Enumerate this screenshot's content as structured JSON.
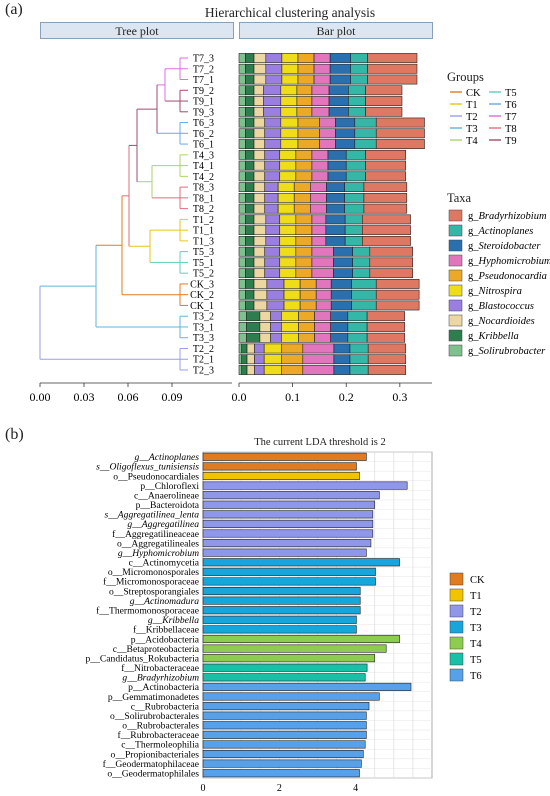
{
  "panel_a": {
    "label": "(a)",
    "title": "Hierarchical clustering analysis",
    "tree_header": "Tree plot",
    "bar_header": "Bar plot",
    "groups_title": "Groups",
    "taxa_title": "Taxa"
  },
  "panel_b": {
    "label": "(b)",
    "title": "The current LDA threshold is 2"
  },
  "colors": {
    "groups": {
      "CK": "#e07b1f",
      "T1": "#e6c619",
      "T2": "#9b9de6",
      "T3": "#63b3dc",
      "T4": "#a9d36b",
      "T5": "#5fcdbf",
      "T6": "#69a8ea",
      "T7": "#dc6fdc",
      "T8": "#e06c7c",
      "T9": "#a04c6e"
    },
    "lda_groups": {
      "CK": "#e07b1f",
      "T1": "#f2c400",
      "T2": "#8f97e8",
      "T3": "#16a6dc",
      "T4": "#8ccd4f",
      "T5": "#17c0a6",
      "T6": "#57a0ea"
    }
  },
  "chart_data": [
    {
      "type": "bar",
      "subtype": "stacked-horizontal",
      "title": "Hierarchical clustering analysis",
      "x_ticks": [
        "0.0",
        "0.1",
        "0.2",
        "0.3"
      ],
      "xlim": [
        0,
        0.36
      ],
      "tree_x_ticks": [
        "0.00",
        "0.03",
        "0.06",
        "0.09"
      ],
      "tree_xlim": [
        0,
        0.12
      ],
      "categories": [
        "T7_3",
        "T7_2",
        "T7_1",
        "T9_2",
        "T9_1",
        "T9_3",
        "T6_3",
        "T6_2",
        "T6_1",
        "T4_3",
        "T4_1",
        "T4_2",
        "T8_3",
        "T8_1",
        "T8_2",
        "T1_2",
        "T1_1",
        "T1_3",
        "T5_3",
        "T5_1",
        "T5_2",
        "CK_3",
        "CK_2",
        "CK_1",
        "T3_2",
        "T3_1",
        "T3_3",
        "T2_2",
        "T2_1",
        "T2_3"
      ],
      "groups": [
        "CK",
        "T1",
        "T2",
        "T3",
        "T4",
        "T5",
        "T6",
        "T7",
        "T8",
        "T9"
      ],
      "legend_groups_order": [
        "CK",
        "T1",
        "T2",
        "T3",
        "T4",
        "T5",
        "T6",
        "T7",
        "T8",
        "T9"
      ],
      "taxa": [
        "g_Solirubrobacter",
        "g_Kribbella",
        "g_Nocardioides",
        "g_Blastococcus",
        "g_Nitrospira",
        "g_Pseudonocardia",
        "g_Hyphomicrobium",
        "g_Steroidobacter",
        "g_Actinoplanes",
        "g_Bradyrhizobium"
      ],
      "taxa_legend_order": [
        "g_Bradyrhizobium",
        "g_Actinoplanes",
        "g_Steroidobacter",
        "g_Hyphomicrobium",
        "g_Pseudonocardia",
        "g_Nitrospira",
        "g_Blastococcus",
        "g_Nocardioides",
        "g_Kribbella",
        "g_Solirubrobacter"
      ],
      "taxa_colors": [
        "#7fc08f",
        "#2e7d4f",
        "#ecd6a2",
        "#9a7ee0",
        "#eedd18",
        "#eca928",
        "#e176bd",
        "#2a6fae",
        "#35b7a8",
        "#de7863"
      ],
      "series": [
        {
          "name": "g_Solirubrobacter",
          "values": [
            0.012,
            0.012,
            0.012,
            0.012,
            0.012,
            0.012,
            0.012,
            0.012,
            0.012,
            0.012,
            0.012,
            0.012,
            0.012,
            0.012,
            0.012,
            0.012,
            0.012,
            0.012,
            0.012,
            0.012,
            0.012,
            0.012,
            0.012,
            0.012,
            0.014,
            0.014,
            0.014,
            0.005,
            0.005,
            0.005
          ]
        },
        {
          "name": "g_Kribbella",
          "values": [
            0.016,
            0.016,
            0.016,
            0.016,
            0.016,
            0.016,
            0.016,
            0.016,
            0.016,
            0.016,
            0.016,
            0.016,
            0.016,
            0.016,
            0.016,
            0.016,
            0.016,
            0.016,
            0.016,
            0.016,
            0.016,
            0.016,
            0.016,
            0.016,
            0.025,
            0.025,
            0.025,
            0.01,
            0.01,
            0.01
          ]
        },
        {
          "name": "g_Nocardioides",
          "values": [
            0.022,
            0.022,
            0.022,
            0.018,
            0.018,
            0.018,
            0.02,
            0.02,
            0.02,
            0.02,
            0.02,
            0.02,
            0.02,
            0.02,
            0.02,
            0.022,
            0.022,
            0.022,
            0.02,
            0.02,
            0.02,
            0.024,
            0.024,
            0.024,
            0.02,
            0.02,
            0.02,
            0.014,
            0.014,
            0.014
          ]
        },
        {
          "name": "g_Blastococcus",
          "values": [
            0.03,
            0.03,
            0.03,
            0.032,
            0.032,
            0.032,
            0.03,
            0.03,
            0.03,
            0.028,
            0.028,
            0.028,
            0.025,
            0.025,
            0.025,
            0.026,
            0.026,
            0.026,
            0.028,
            0.028,
            0.028,
            0.032,
            0.032,
            0.032,
            0.02,
            0.02,
            0.02,
            0.018,
            0.018,
            0.018
          ]
        },
        {
          "name": "g_Nitrospira",
          "values": [
            0.03,
            0.03,
            0.03,
            0.03,
            0.03,
            0.03,
            0.032,
            0.032,
            0.032,
            0.03,
            0.03,
            0.03,
            0.03,
            0.03,
            0.03,
            0.03,
            0.03,
            0.03,
            0.03,
            0.03,
            0.03,
            0.03,
            0.03,
            0.03,
            0.032,
            0.032,
            0.032,
            0.032,
            0.032,
            0.032
          ]
        },
        {
          "name": "g_Pseudonocardia",
          "values": [
            0.03,
            0.03,
            0.03,
            0.028,
            0.028,
            0.028,
            0.04,
            0.04,
            0.04,
            0.03,
            0.03,
            0.03,
            0.03,
            0.03,
            0.03,
            0.03,
            0.03,
            0.03,
            0.03,
            0.03,
            0.03,
            0.03,
            0.03,
            0.03,
            0.03,
            0.03,
            0.03,
            0.04,
            0.04,
            0.04
          ]
        },
        {
          "name": "g_Hyphomicrobium",
          "values": [
            0.03,
            0.03,
            0.03,
            0.032,
            0.032,
            0.032,
            0.03,
            0.03,
            0.03,
            0.03,
            0.03,
            0.03,
            0.03,
            0.03,
            0.03,
            0.026,
            0.026,
            0.026,
            0.04,
            0.04,
            0.04,
            0.028,
            0.028,
            0.028,
            0.03,
            0.03,
            0.03,
            0.058,
            0.058,
            0.058
          ]
        },
        {
          "name": "g_Steroidobacter",
          "values": [
            0.038,
            0.038,
            0.038,
            0.036,
            0.036,
            0.036,
            0.036,
            0.036,
            0.036,
            0.034,
            0.034,
            0.034,
            0.034,
            0.034,
            0.034,
            0.036,
            0.036,
            0.036,
            0.036,
            0.036,
            0.036,
            0.038,
            0.038,
            0.038,
            0.032,
            0.032,
            0.032,
            0.03,
            0.03,
            0.03
          ]
        },
        {
          "name": "g_Actinoplanes",
          "values": [
            0.032,
            0.032,
            0.032,
            0.032,
            0.032,
            0.032,
            0.04,
            0.04,
            0.04,
            0.036,
            0.036,
            0.036,
            0.036,
            0.036,
            0.036,
            0.032,
            0.032,
            0.032,
            0.032,
            0.032,
            0.032,
            0.046,
            0.046,
            0.046,
            0.036,
            0.036,
            0.036,
            0.034,
            0.034,
            0.034
          ]
        },
        {
          "name": "g_Bradyrhizobium",
          "values": [
            0.092,
            0.092,
            0.092,
            0.068,
            0.068,
            0.068,
            0.09,
            0.09,
            0.09,
            0.075,
            0.075,
            0.075,
            0.08,
            0.08,
            0.08,
            0.09,
            0.09,
            0.09,
            0.08,
            0.08,
            0.08,
            0.08,
            0.08,
            0.08,
            0.07,
            0.07,
            0.07,
            0.07,
            0.07,
            0.07
          ]
        }
      ]
    },
    {
      "type": "bar",
      "subtype": "horizontal",
      "title": "The current LDA threshold is 2",
      "xlim": [
        0,
        6
      ],
      "x_ticks": [
        "0",
        "2",
        "4"
      ],
      "grid": true,
      "legend_groups": [
        "CK",
        "T1",
        "T2",
        "T3",
        "T4",
        "T5",
        "T6"
      ],
      "categories": [
        "g__Actinoplanes",
        "s__Oligoflexus_tunisiensis",
        "o__Pseudonocardiales",
        "p__Chloroflexi",
        "c__Anaerolineae",
        "p__Bacteroidota",
        "s__Aggregatilinea_lenta",
        "g__Aggregatilinea",
        "f__Aggregatilineaceae",
        "o__Aggregatilineales",
        "g__Hyphomicrobium",
        "c__Actinomycetia",
        "o__Micromonosporales",
        "f__Micromonosporaceae",
        "o__Streptosporangiales",
        "g__Actinomadura",
        "f__Thermomonosporaceae",
        "g__Kribbella",
        "f__Kribbellaceae",
        "p__Acidobacteria",
        "c__Betaproteobacteria",
        "p__Candidatus_Rokubacteria",
        "f__Nitrobacteraceae",
        "g__Bradyrhizobium",
        "p__Actinobacteria",
        "p__Gemmatimonadetes",
        "c__Rubrobacteria",
        "o__Solirubrobacterales",
        "o__Rubrobacterales",
        "f__Rubrobacteraceae",
        "c__Thermoleophilia",
        "o__Propionibacteriales",
        "f__Geodermatophilaceae",
        "o__Geodermatophilales"
      ],
      "italic": [
        true,
        true,
        false,
        false,
        false,
        false,
        true,
        true,
        false,
        false,
        true,
        false,
        false,
        false,
        false,
        true,
        false,
        true,
        false,
        false,
        false,
        false,
        false,
        true,
        false,
        false,
        false,
        false,
        false,
        false,
        false,
        false,
        false,
        false
      ],
      "values": [
        4.28,
        4.02,
        4.1,
        5.35,
        4.62,
        4.5,
        4.45,
        4.45,
        4.45,
        4.4,
        4.28,
        5.15,
        4.52,
        4.52,
        4.12,
        4.12,
        4.12,
        4.02,
        4.02,
        5.15,
        4.8,
        4.5,
        4.3,
        4.25,
        5.45,
        4.62,
        4.35,
        4.28,
        4.28,
        4.28,
        4.25,
        4.2,
        4.15,
        4.1
      ],
      "group": [
        "CK",
        "CK",
        "T1",
        "T2",
        "T2",
        "T2",
        "T2",
        "T2",
        "T2",
        "T2",
        "T2",
        "T3",
        "T3",
        "T3",
        "T3",
        "T3",
        "T3",
        "T3",
        "T3",
        "T4",
        "T4",
        "T4",
        "T5",
        "T5",
        "T6",
        "T6",
        "T6",
        "T6",
        "T6",
        "T6",
        "T6",
        "T6",
        "T6",
        "T6"
      ]
    }
  ]
}
